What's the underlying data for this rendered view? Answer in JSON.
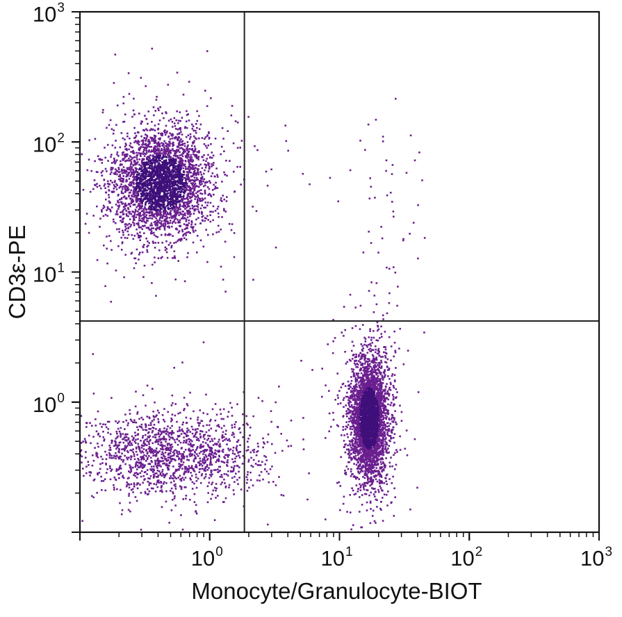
{
  "chart_data": {
    "type": "scatter",
    "scale": {
      "x": "log",
      "y": "log"
    },
    "xlim": [
      0.1,
      1000
    ],
    "ylim": [
      0.1,
      1000
    ],
    "xlabel": "Monocyte/Granulocyte-BIOT",
    "ylabel": "CD3ε-PE",
    "x_ticks": [
      {
        "value": 1,
        "base": "10",
        "exp": "0"
      },
      {
        "value": 10,
        "base": "10",
        "exp": "1"
      },
      {
        "value": 100,
        "base": "10",
        "exp": "2"
      },
      {
        "value": 1000,
        "base": "10",
        "exp": "3"
      }
    ],
    "y_ticks": [
      {
        "value": 1,
        "base": "10",
        "exp": "0"
      },
      {
        "value": 10,
        "base": "10",
        "exp": "1"
      },
      {
        "value": 100,
        "base": "10",
        "exp": "2"
      },
      {
        "value": 1000,
        "base": "10",
        "exp": "3"
      }
    ],
    "quadrant_gates": {
      "x": 1.85,
      "y": 4.2
    },
    "point_color": "#6b1f8f",
    "dense_color": "#3f0f7a",
    "grid": false,
    "populations": [
      {
        "name": "",
        "region": "upper-left",
        "center": [
          0.42,
          48
        ],
        "spread_log10": [
          0.18,
          0.2
        ],
        "count": 3400
      },
      {
        "name": "",
        "region": "lower-right",
        "center": [
          17,
          0.75
        ],
        "spread_log10": [
          0.07,
          0.22
        ],
        "count": 3700
      },
      {
        "name": "",
        "region": "lower-left",
        "center": [
          0.5,
          0.4
        ],
        "spread_log10": [
          0.35,
          0.16
        ],
        "count": 1500
      },
      {
        "name": "",
        "region": "upper-right",
        "center": [
          20,
          40
        ],
        "spread_log10": [
          0.2,
          0.3
        ],
        "count": 45
      }
    ]
  }
}
